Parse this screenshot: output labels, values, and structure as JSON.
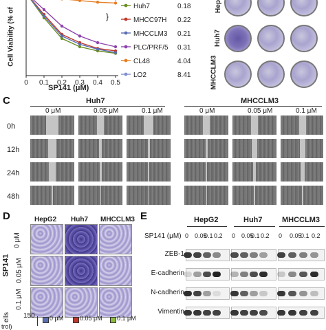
{
  "panel_letters": [
    "C",
    "D",
    "E"
  ],
  "chart_data": {
    "type": "line",
    "title": "",
    "xlabel": "SP141 (μM)",
    "ylabel": "Cell Viability (% of",
    "x": [
      0,
      0.1,
      0.2,
      0.3,
      0.4,
      0.5
    ],
    "xticks": [
      "0",
      "0.1",
      "0.2",
      "0.3",
      "0.4",
      "0.5"
    ],
    "xlim": [
      0,
      0.5
    ],
    "ylim": [
      0,
      100
    ],
    "series": [
      {
        "name": "Huh7",
        "ic50": "0.18",
        "color": "#6b8e23",
        "values": [
          100,
          70,
          45,
          35,
          30,
          27
        ]
      },
      {
        "name": "MHCC97H",
        "ic50": "0.22",
        "color": "#c0392b",
        "values": [
          100,
          74,
          50,
          40,
          33,
          30
        ]
      },
      {
        "name": "MHCCLM3",
        "ic50": "0.21",
        "color": "#5b6fb5",
        "values": [
          100,
          72,
          48,
          38,
          32,
          28
        ]
      },
      {
        "name": "PLC/PRF/5",
        "ic50": "0.31",
        "color": "#8e44ad",
        "values": [
          100,
          80,
          60,
          48,
          40,
          35
        ]
      },
      {
        "name": "CL48",
        "ic50": "4.04",
        "color": "#e67e22",
        "values": [
          100,
          96,
          93,
          91,
          89,
          88
        ]
      },
      {
        "name": "LO2",
        "ic50": "8.41",
        "color": "#7f8fd0",
        "values": [
          100,
          98,
          96,
          95,
          94,
          93
        ]
      }
    ]
  },
  "colony": {
    "row_labels": [
      "Hep",
      "Huh7",
      "MHCCLM3"
    ]
  },
  "wound": {
    "cell_lines": [
      "Huh7",
      "MHCCLM3"
    ],
    "doses": [
      "0 μM",
      "0.05 μM",
      "0.1 μM"
    ],
    "times": [
      "0h",
      "12h",
      "24h",
      "48h"
    ]
  },
  "transwell": {
    "columns": [
      "HepG2",
      "Huh7",
      "MHCCLM3"
    ],
    "drug_label": "SP141",
    "row_doses": [
      "0 μM",
      "0.05 μM",
      "0.1 μM"
    ],
    "bottom_axis_text": "ells",
    "bottom_tick": "150",
    "bottom_unit": "trol)",
    "legend": [
      {
        "label": "0 μM",
        "color": "#5b6fb5"
      },
      {
        "label": "0.05 μM",
        "color": "#c0392b"
      },
      {
        "label": "0.1 μM",
        "color": "#8fbc3f"
      }
    ]
  },
  "western": {
    "cell_lines": [
      "HepG2",
      "Huh7",
      "MHCCLM3"
    ],
    "dose_label": "SP141 (μM)",
    "doses": [
      "0",
      "0.05",
      "0.1",
      "0.2",
      "0",
      "0.05",
      "0.1",
      "0.2",
      "0",
      "0.05",
      "0.1",
      "0.2"
    ],
    "proteins": [
      "ZEB-1",
      "E-cadherin",
      "N-cadherin",
      "Vimentin"
    ],
    "band_intensity": {
      "ZEB-1": [
        0.9,
        0.85,
        0.7,
        0.5,
        0.8,
        0.7,
        0.55,
        0.4,
        0.85,
        0.7,
        0.55,
        0.45
      ],
      "E-cadherin": [
        0.15,
        0.4,
        0.8,
        1.0,
        0.3,
        0.55,
        0.8,
        0.95,
        0.2,
        0.5,
        0.75,
        0.95
      ],
      "N-cadherin": [
        0.95,
        0.85,
        0.4,
        0.1,
        0.9,
        0.7,
        0.4,
        0.2,
        0.9,
        0.75,
        0.45,
        0.25
      ],
      "Vimentin": [
        0.9,
        0.9,
        0.85,
        0.85,
        0.9,
        0.85,
        0.85,
        0.8,
        0.9,
        0.9,
        0.85,
        0.85
      ]
    }
  }
}
